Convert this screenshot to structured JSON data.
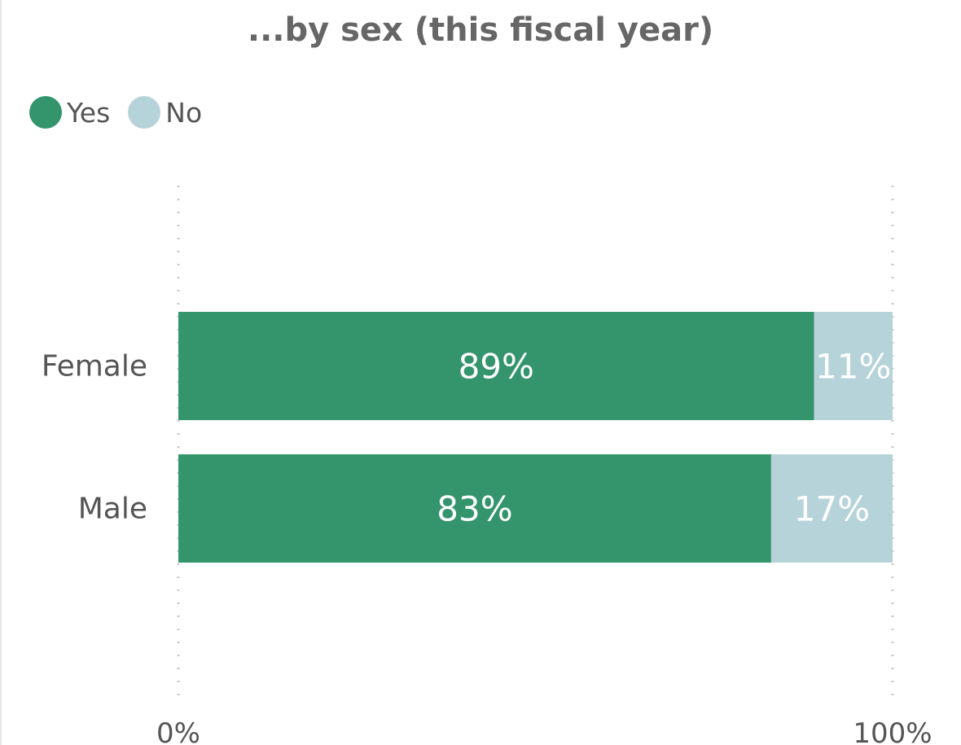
{
  "chart_data": {
    "type": "bar",
    "orientation": "horizontal",
    "stacked": true,
    "title": "...by sex (this fiscal year)",
    "categories": [
      "Female",
      "Male"
    ],
    "series": [
      {
        "name": "Yes",
        "values": [
          89,
          83
        ],
        "labels": [
          "89%",
          "83%"
        ],
        "color": "#34956c"
      },
      {
        "name": "No",
        "values": [
          11,
          17
        ],
        "labels": [
          "11%",
          "17%"
        ],
        "color": "#b6d3d9"
      }
    ],
    "xlim": [
      0,
      100
    ],
    "x_ticks": [
      "0%",
      "100%"
    ],
    "grid": true,
    "legend_position": "top-left"
  }
}
